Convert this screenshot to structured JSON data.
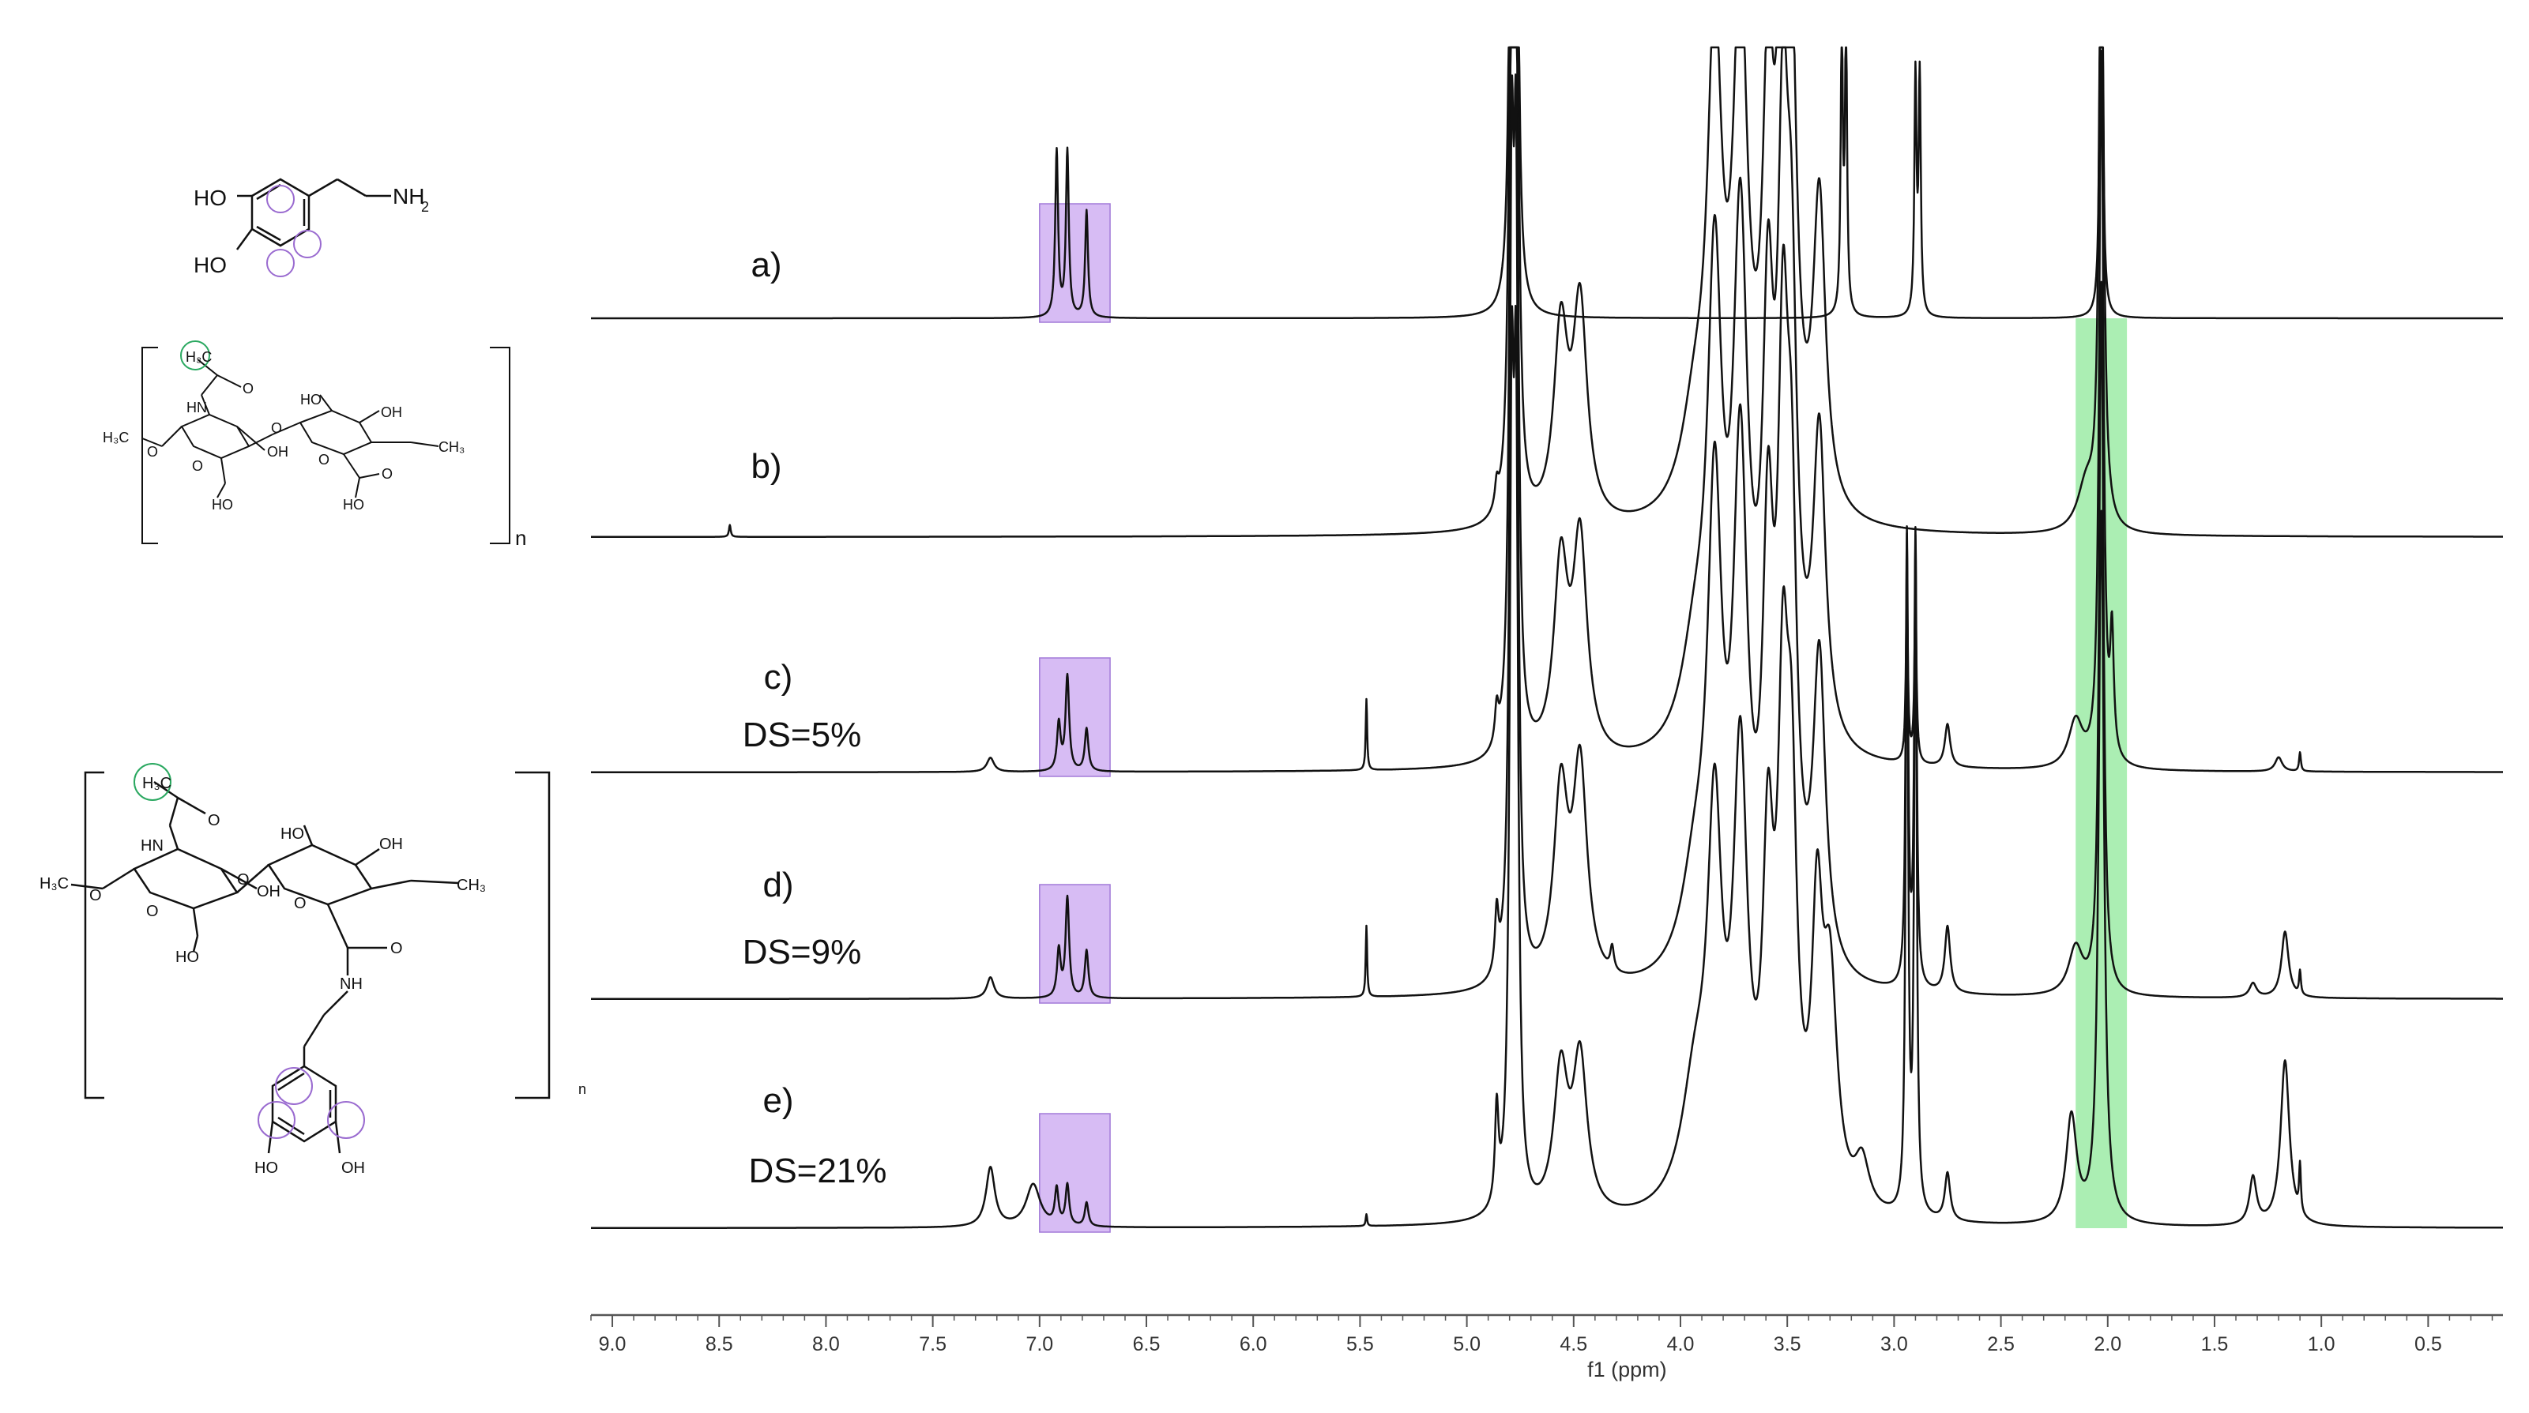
{
  "colors": {
    "spectrum": "#111111",
    "aromatic_highlight": "#c9a6f0",
    "acetyl_highlight": "#8fe89a",
    "circle_purple": "#9a6bd0",
    "circle_green": "#2aa860"
  },
  "structures": {
    "dopamine": {
      "ho_top": "HO",
      "ho_bottom": "HO",
      "amine": "NH",
      "amine_sub": "2"
    },
    "hyaluronic_acid": {
      "methyl_left": "H₃C",
      "acetyl_methyl": "H₃C",
      "nh": "HN",
      "oh1": "HO",
      "oh2": "OH",
      "oh3": "OH",
      "oh4": "HO",
      "oh5": "HO",
      "methyl_right": "CH₃",
      "o1": "O",
      "o2": "O",
      "o3": "O",
      "o4": "O",
      "o5": "O",
      "carbonyl": "O",
      "repeat": "n"
    },
    "ha_dopamine": {
      "methyl_left": "H₃C",
      "acetyl_methyl": "H₃C",
      "nh": "HN",
      "oh1": "HO",
      "oh2": "OH",
      "oh3": "OH",
      "oh4": "HO",
      "methyl_right": "CH₃",
      "o1": "O",
      "o2": "O",
      "o3": "O",
      "o4": "O",
      "carbonyl": "O",
      "amide_nh": "NH",
      "ho_ring1": "HO",
      "ho_ring2": "OH",
      "repeat": "n"
    }
  },
  "chart_data": {
    "type": "line",
    "title": "",
    "xlabel": "f1 (ppm)",
    "ylabel": "",
    "xlim": [
      9.1,
      0.15
    ],
    "x_reversed": true,
    "xticks": [
      9.0,
      8.5,
      8.0,
      7.5,
      7.0,
      6.5,
      6.0,
      5.5,
      5.0,
      4.5,
      4.0,
      3.5,
      3.0,
      2.5,
      2.0,
      1.5,
      1.0,
      0.5
    ],
    "xtick_labels": [
      "9.0",
      "8.5",
      "8.0",
      "7.5",
      "7.0",
      "6.5",
      "6.0",
      "5.5",
      "5.0",
      "4.5",
      "4.0",
      "3.5",
      "3.0",
      "2.5",
      "2.0",
      "1.5",
      "1.0",
      "0.5"
    ],
    "highlight_regions": [
      {
        "name": "aromatic",
        "from": 7.0,
        "to": 6.67,
        "spectra": [
          0,
          2,
          3,
          4
        ]
      },
      {
        "name": "acetyl",
        "from": 2.15,
        "to": 1.91,
        "spectra": "all"
      }
    ],
    "series": [
      {
        "label": "a)",
        "sublabel": "",
        "peaks": [
          {
            "x": 6.92,
            "h": 0.7,
            "w": 0.008
          },
          {
            "x": 6.87,
            "h": 0.7,
            "w": 0.008
          },
          {
            "x": 6.78,
            "h": 0.45,
            "w": 0.008
          },
          {
            "x": 4.79,
            "h": 3.0,
            "w": 0.01
          },
          {
            "x": 4.77,
            "h": 3.0,
            "w": 0.01
          },
          {
            "x": 3.245,
            "h": 1.2,
            "w": 0.006
          },
          {
            "x": 3.225,
            "h": 1.2,
            "w": 0.006
          },
          {
            "x": 2.9,
            "h": 1.0,
            "w": 0.006
          },
          {
            "x": 2.88,
            "h": 1.0,
            "w": 0.006
          },
          {
            "x": 2.03,
            "h": 3.0,
            "w": 0.006
          }
        ]
      },
      {
        "label": "b)",
        "sublabel": "",
        "peaks": [
          {
            "x": 8.45,
            "h": 0.05,
            "w": 0.005
          },
          {
            "x": 4.86,
            "h": 0.1,
            "w": 0.01
          },
          {
            "x": 4.79,
            "h": 3.0,
            "w": 0.012
          },
          {
            "x": 4.77,
            "h": 3.0,
            "w": 0.012
          },
          {
            "x": 4.56,
            "h": 0.8,
            "w": 0.04
          },
          {
            "x": 4.47,
            "h": 0.9,
            "w": 0.04
          },
          {
            "x": 3.93,
            "h": 0.4,
            "w": 0.08
          },
          {
            "x": 3.84,
            "h": 1.9,
            "w": 0.04
          },
          {
            "x": 3.72,
            "h": 2.1,
            "w": 0.04
          },
          {
            "x": 3.59,
            "h": 1.6,
            "w": 0.03
          },
          {
            "x": 3.52,
            "h": 2.2,
            "w": 0.03
          },
          {
            "x": 3.48,
            "h": 1.5,
            "w": 0.03
          },
          {
            "x": 3.35,
            "h": 1.3,
            "w": 0.035
          },
          {
            "x": 2.1,
            "h": 0.2,
            "w": 0.05
          },
          {
            "x": 2.03,
            "h": 3.0,
            "w": 0.012
          }
        ]
      },
      {
        "label": "c)",
        "sublabel": "DS=5%",
        "peaks": [
          {
            "x": 7.23,
            "h": 0.06,
            "w": 0.02
          },
          {
            "x": 6.91,
            "h": 0.2,
            "w": 0.01
          },
          {
            "x": 6.87,
            "h": 0.4,
            "w": 0.01
          },
          {
            "x": 6.78,
            "h": 0.18,
            "w": 0.01
          },
          {
            "x": 5.47,
            "h": 0.3,
            "w": 0.004
          },
          {
            "x": 4.86,
            "h": 0.15,
            "w": 0.01
          },
          {
            "x": 4.79,
            "h": 3.0,
            "w": 0.012
          },
          {
            "x": 4.77,
            "h": 3.0,
            "w": 0.012
          },
          {
            "x": 4.56,
            "h": 0.8,
            "w": 0.04
          },
          {
            "x": 4.47,
            "h": 0.9,
            "w": 0.04
          },
          {
            "x": 3.93,
            "h": 0.4,
            "w": 0.08
          },
          {
            "x": 3.84,
            "h": 1.9,
            "w": 0.04
          },
          {
            "x": 3.72,
            "h": 2.1,
            "w": 0.04
          },
          {
            "x": 3.59,
            "h": 1.6,
            "w": 0.03
          },
          {
            "x": 3.52,
            "h": 2.2,
            "w": 0.03
          },
          {
            "x": 3.48,
            "h": 1.5,
            "w": 0.03
          },
          {
            "x": 3.35,
            "h": 1.3,
            "w": 0.035
          },
          {
            "x": 2.94,
            "h": 0.7,
            "w": 0.006
          },
          {
            "x": 2.9,
            "h": 0.7,
            "w": 0.006
          },
          {
            "x": 2.75,
            "h": 0.18,
            "w": 0.015
          },
          {
            "x": 2.15,
            "h": 0.2,
            "w": 0.04
          },
          {
            "x": 2.03,
            "h": 3.0,
            "w": 0.012
          },
          {
            "x": 1.98,
            "h": 0.5,
            "w": 0.01
          },
          {
            "x": 1.2,
            "h": 0.06,
            "w": 0.02
          },
          {
            "x": 1.1,
            "h": 0.08,
            "w": 0.005
          }
        ]
      },
      {
        "label": "d)",
        "sublabel": "DS=9%",
        "peaks": [
          {
            "x": 7.23,
            "h": 0.09,
            "w": 0.02
          },
          {
            "x": 6.91,
            "h": 0.2,
            "w": 0.01
          },
          {
            "x": 6.87,
            "h": 0.42,
            "w": 0.01
          },
          {
            "x": 6.78,
            "h": 0.2,
            "w": 0.01
          },
          {
            "x": 5.47,
            "h": 0.3,
            "w": 0.004
          },
          {
            "x": 4.86,
            "h": 0.25,
            "w": 0.01
          },
          {
            "x": 4.79,
            "h": 3.0,
            "w": 0.012
          },
          {
            "x": 4.77,
            "h": 3.0,
            "w": 0.012
          },
          {
            "x": 4.56,
            "h": 0.8,
            "w": 0.04
          },
          {
            "x": 4.47,
            "h": 0.9,
            "w": 0.04
          },
          {
            "x": 4.32,
            "h": 0.1,
            "w": 0.01
          },
          {
            "x": 3.93,
            "h": 0.4,
            "w": 0.08
          },
          {
            "x": 3.84,
            "h": 1.9,
            "w": 0.04
          },
          {
            "x": 3.72,
            "h": 2.1,
            "w": 0.04
          },
          {
            "x": 3.59,
            "h": 1.6,
            "w": 0.03
          },
          {
            "x": 3.52,
            "h": 2.2,
            "w": 0.03
          },
          {
            "x": 3.48,
            "h": 1.5,
            "w": 0.03
          },
          {
            "x": 3.35,
            "h": 1.3,
            "w": 0.035
          },
          {
            "x": 2.94,
            "h": 1.9,
            "w": 0.007
          },
          {
            "x": 2.9,
            "h": 1.9,
            "w": 0.007
          },
          {
            "x": 2.75,
            "h": 0.28,
            "w": 0.015
          },
          {
            "x": 2.15,
            "h": 0.2,
            "w": 0.04
          },
          {
            "x": 2.03,
            "h": 3.0,
            "w": 0.012
          },
          {
            "x": 1.32,
            "h": 0.06,
            "w": 0.02
          },
          {
            "x": 1.17,
            "h": 0.28,
            "w": 0.02
          },
          {
            "x": 1.1,
            "h": 0.1,
            "w": 0.005
          }
        ]
      },
      {
        "label": "e)",
        "sublabel": "DS=21%",
        "peaks": [
          {
            "x": 7.23,
            "h": 0.25,
            "w": 0.025
          },
          {
            "x": 7.03,
            "h": 0.18,
            "w": 0.04
          },
          {
            "x": 6.92,
            "h": 0.15,
            "w": 0.01
          },
          {
            "x": 6.87,
            "h": 0.17,
            "w": 0.01
          },
          {
            "x": 6.78,
            "h": 0.1,
            "w": 0.01
          },
          {
            "x": 5.47,
            "h": 0.05,
            "w": 0.004
          },
          {
            "x": 4.86,
            "h": 0.4,
            "w": 0.01
          },
          {
            "x": 4.79,
            "h": 3.0,
            "w": 0.012
          },
          {
            "x": 4.77,
            "h": 3.0,
            "w": 0.012
          },
          {
            "x": 4.56,
            "h": 0.6,
            "w": 0.04
          },
          {
            "x": 4.47,
            "h": 0.65,
            "w": 0.04
          },
          {
            "x": 3.93,
            "h": 0.5,
            "w": 0.08
          },
          {
            "x": 3.84,
            "h": 1.5,
            "w": 0.04
          },
          {
            "x": 3.72,
            "h": 1.8,
            "w": 0.04
          },
          {
            "x": 3.59,
            "h": 1.3,
            "w": 0.03
          },
          {
            "x": 3.52,
            "h": 1.8,
            "w": 0.03
          },
          {
            "x": 3.48,
            "h": 1.4,
            "w": 0.03
          },
          {
            "x": 3.36,
            "h": 1.1,
            "w": 0.03
          },
          {
            "x": 3.3,
            "h": 0.9,
            "w": 0.04
          },
          {
            "x": 3.15,
            "h": 0.2,
            "w": 0.04
          },
          {
            "x": 2.94,
            "h": 2.8,
            "w": 0.007
          },
          {
            "x": 2.9,
            "h": 2.8,
            "w": 0.007
          },
          {
            "x": 2.75,
            "h": 0.2,
            "w": 0.015
          },
          {
            "x": 2.17,
            "h": 0.45,
            "w": 0.03
          },
          {
            "x": 2.03,
            "h": 3.0,
            "w": 0.015
          },
          {
            "x": 1.32,
            "h": 0.2,
            "w": 0.02
          },
          {
            "x": 1.17,
            "h": 0.7,
            "w": 0.025
          },
          {
            "x": 1.1,
            "h": 0.2,
            "w": 0.005
          }
        ]
      }
    ]
  }
}
